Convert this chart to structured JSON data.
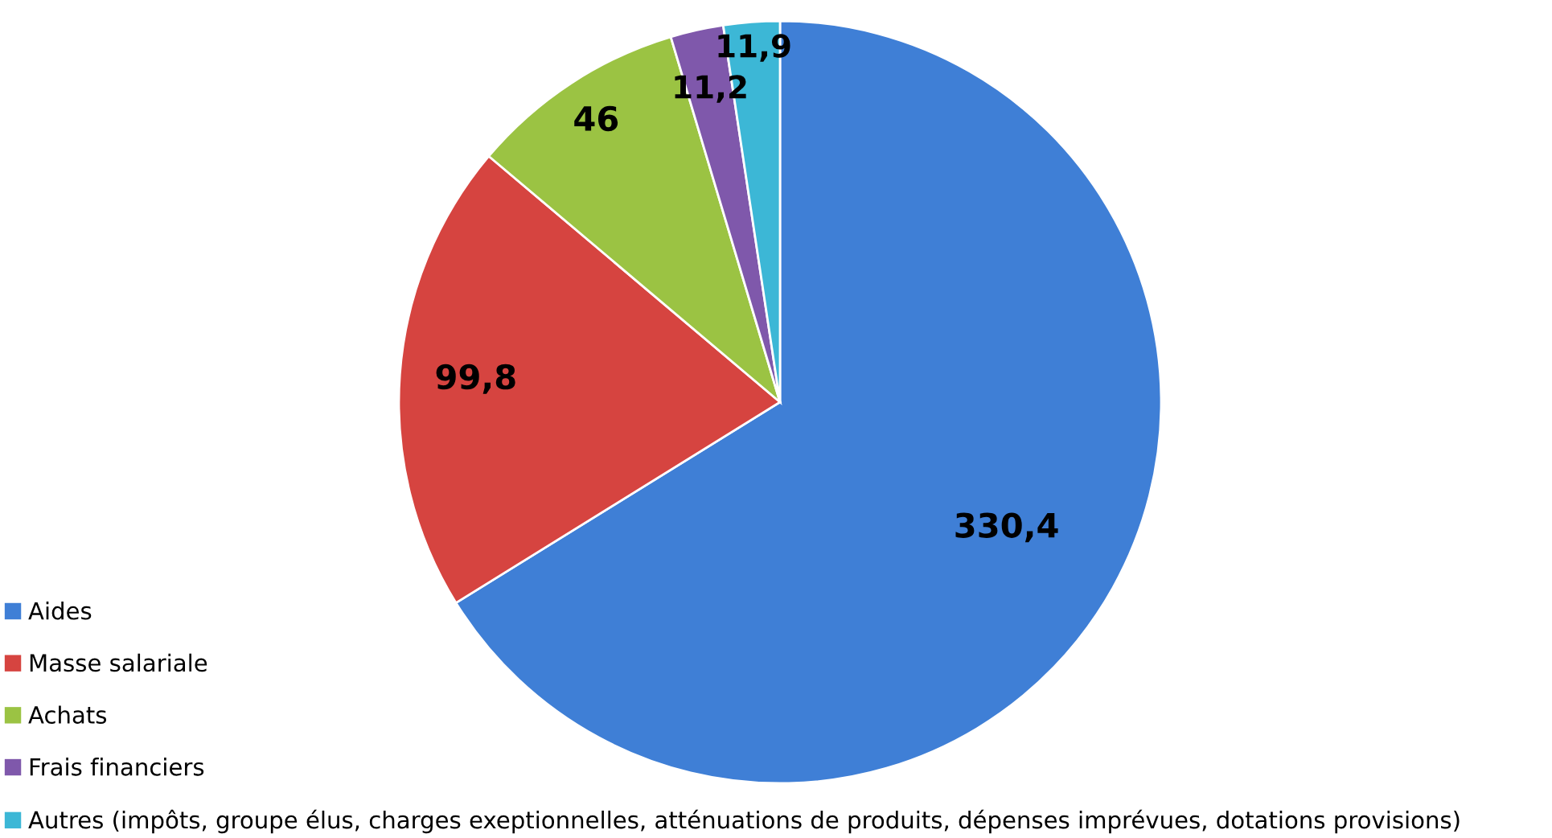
{
  "chart_data": {
    "type": "pie",
    "categories": [
      "Aides",
      "Masse salariale",
      "Achats",
      "Frais financiers",
      "Autres (impôts, groupe élus, charges exeptionnelles, atténuations de produits, dépenses imprévues, dotations provisions)"
    ],
    "values": [
      330.4,
      99.8,
      46,
      11.2,
      11.9
    ],
    "value_labels": [
      "330,4",
      "99,8",
      "46",
      "11,2",
      "11,9"
    ],
    "colors": [
      "#3f7fd6",
      "#d64440",
      "#9bc343",
      "#7f58ab",
      "#3cb7d6"
    ],
    "legend": "bottom left"
  }
}
